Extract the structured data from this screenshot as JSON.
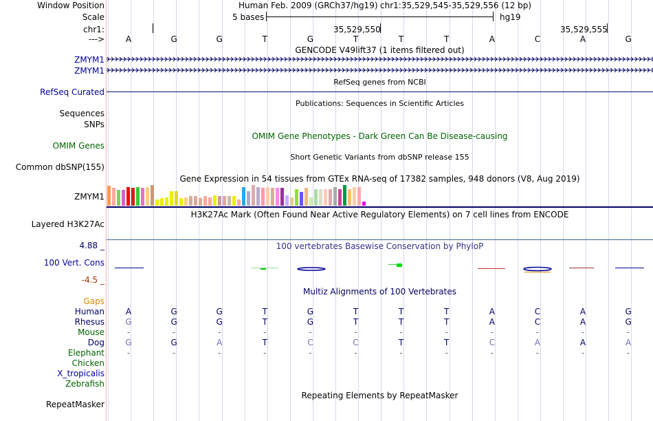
{
  "labels": {
    "window_position": "Window Position",
    "scale": "Scale",
    "chr": "chr1:",
    "arrow": "--->",
    "gencode_a": "ZMYM1",
    "gencode_b": "ZMYM1",
    "refseq": "RefSeq Curated",
    "sequences": "Sequences",
    "snps": "SNPs",
    "omim": "OMIM Genes",
    "common_dbsnp": "Common dbSNP(155)",
    "gtex": "ZMYM1",
    "h3k27ac": "Layered H3K27Ac",
    "cons_max": "4.88 _",
    "cons": "100 Vert. Cons",
    "cons_min": "-4.5 _",
    "gaps": "Gaps",
    "species": [
      "Human",
      "Rhesus",
      "Mouse",
      "Dog",
      "Elephant",
      "Chicken",
      "X_tropicalis",
      "Zebrafish"
    ],
    "repeatmasker": "RepeatMasker"
  },
  "header": {
    "assembly": "Human Feb. 2009 (GRCh37/hg19)",
    "position": "chr1:35,529,545-35,529,556 (12 bp)",
    "scale_left": "5 bases",
    "scale_right": "hg19",
    "coord_1": "35,529,550",
    "coord_2": "35,529,555"
  },
  "titles": {
    "gencode": "GENCODE V49lift37 (1 items filtered out)",
    "refseq": "RefSeq genes from NCBI",
    "publications": "Publications: Sequences in Scientific Articles",
    "omim": "OMIM Gene Phenotypes - Dark Green Can Be Disease-causing",
    "dbsnp": "Short Genetic Variants from dbSNP release 155",
    "gtex": "Gene Expression in 54 tissues from GTEx RNA-seq of 17382 samples, 948 donors (V8, Aug 2019)",
    "h3k27ac": "H3K27Ac Mark (Often Found Near Active Regulatory Elements) on 7 cell lines from ENCODE",
    "phylop": "100 vertebrates Basewise Conservation by PhyloP",
    "multiz": "Multiz Alignments of 100 Vertebrates",
    "repeatmasker": "Repeating Elements by RepeatMasker"
  },
  "reference_bases": [
    "A",
    "G",
    "G",
    "T",
    "G",
    "T",
    "T",
    "T",
    "A",
    "C",
    "A",
    "G"
  ],
  "alignment": {
    "Human": [
      "A",
      "G",
      "G",
      "T",
      "G",
      "T",
      "T",
      "T",
      "A",
      "C",
      "A",
      "G"
    ],
    "Rhesus": [
      "G",
      "G",
      "G",
      "T",
      "G",
      "T",
      "T",
      "T",
      "A",
      "C",
      "A",
      "G"
    ],
    "Mouse": [
      "-",
      "-",
      "-",
      "-",
      "-",
      "-",
      "-",
      "-",
      "-",
      "-",
      "-",
      "-"
    ],
    "Dog": [
      "G",
      "G",
      "A",
      "T",
      "C",
      "C",
      "T",
      "T",
      "C",
      "A",
      "A",
      "A"
    ],
    "Elephant": [
      "-",
      "-",
      "-",
      "-",
      "-",
      "-",
      "-",
      "-",
      "-",
      "-",
      "-",
      "-"
    ]
  },
  "alignment_match": {
    "Rhesus": [
      false,
      true,
      true,
      true,
      true,
      true,
      true,
      true,
      true,
      true,
      true,
      true
    ],
    "Dog": [
      false,
      true,
      false,
      true,
      false,
      false,
      true,
      true,
      false,
      false,
      true,
      false
    ]
  },
  "gtex_expression": [
    0.95,
    0.85,
    0.75,
    0.75,
    0.9,
    0.85,
    0.9,
    0.85,
    0.9,
    1.0,
    0.3,
    0.35,
    0.4,
    0.7,
    0.7,
    0.35,
    0.4,
    0.45,
    0.45,
    0.35,
    0.45,
    0.4,
    0.5,
    0.45,
    0.45,
    0.45,
    0.45,
    0.3,
    0.9,
    0.7,
    1.0,
    0.9,
    0.85,
    0.9,
    0.85,
    0.85,
    0.85,
    0.5,
    0.4,
    0.8,
    0.65,
    0.85,
    0.4,
    0.8,
    0.8,
    0.8,
    0.8,
    0.9,
    0.8,
    1.0,
    0.8,
    0.9,
    0.9,
    0.2
  ],
  "colors": {
    "label_blue": "#000099",
    "omim_green": "#006400",
    "gaps_orange": "#dd8800",
    "species_green": "#006400",
    "cons_pos": "#000099",
    "cons_neg": "#993300",
    "match_base": "#7070b0",
    "gtex_palette": [
      "#ff9955",
      "#ffaa99",
      "#88cc66",
      "#cc66cc",
      "#ff0000",
      "#cc2222",
      "#33cc33",
      "#dd77bb",
      "#ffcc88",
      "#cc9977",
      "#eeee00",
      "#eeee00",
      "#eeee00",
      "#eeee00",
      "#dddd22",
      "#eeee00",
      "#ffcc88",
      "#ddaa99",
      "#ddaa99",
      "#ddaa99",
      "#ffaa99",
      "#ffaa99",
      "#eeee00",
      "#cc9999",
      "#ddaa99",
      "#ccbbaa",
      "#eeee00",
      "#ffaa99",
      "#22aaee",
      "#aaaacc",
      "#ddaaaa",
      "#bbaacc",
      "#ff99aa",
      "#ffccaa",
      "#ddaa99",
      "#ff88ee",
      "#993399",
      "#ccaaff",
      "#ddcc99",
      "#99dd33",
      "#6655ff",
      "#eebb88",
      "#cceeaa",
      "#aaddaa",
      "#ddddcc",
      "#ffccbb",
      "#ddaaaa",
      "#aaaaaa",
      "#cc4499",
      "#009944",
      "#ffbb77",
      "#ffccaa",
      "#ffaaaa",
      "#ee00ff"
    ]
  }
}
